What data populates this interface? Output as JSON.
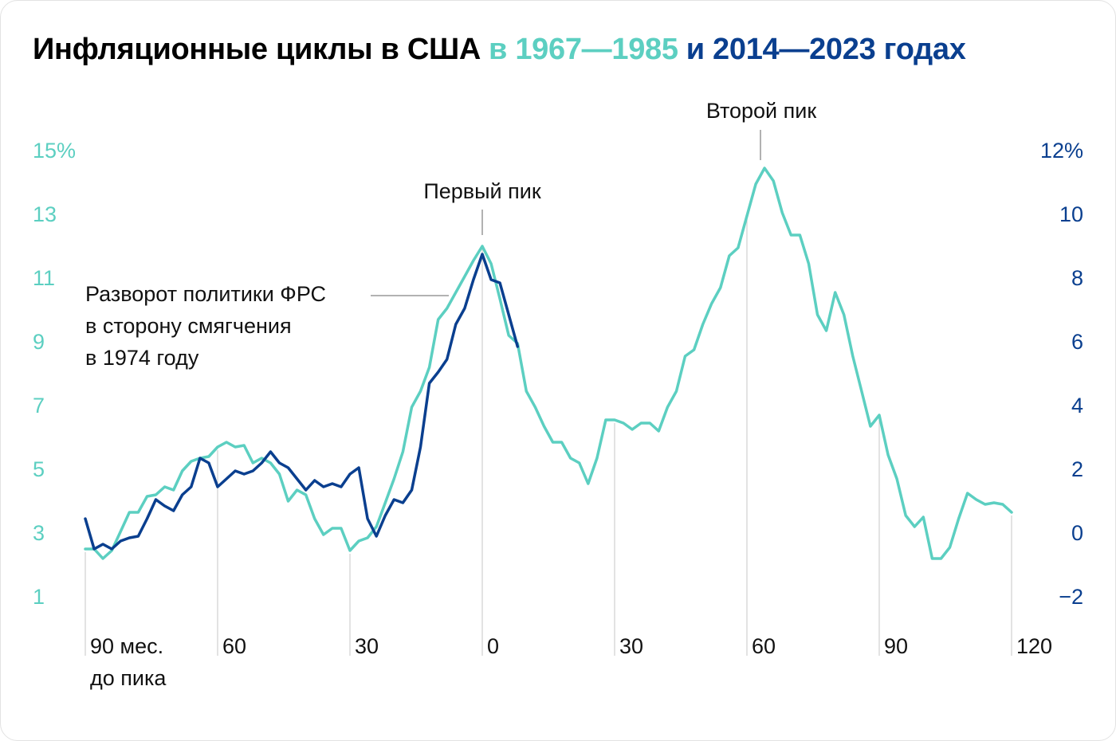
{
  "chart_data": {
    "type": "line",
    "title": [
      "Инфляционные циклы в США",
      "в 1967—1985",
      "и 2014—2023 годах"
    ],
    "x": [
      -90,
      -88,
      -86,
      -84,
      -82,
      -80,
      -78,
      -76,
      -74,
      -72,
      -70,
      -68,
      -66,
      -64,
      -62,
      -60,
      -58,
      -56,
      -54,
      -52,
      -50,
      -48,
      -46,
      -44,
      -42,
      -40,
      -38,
      -36,
      -34,
      -32,
      -30,
      -28,
      -26,
      -24,
      -22,
      -20,
      -18,
      -16,
      -14,
      -12,
      -10,
      -8,
      -6,
      -4,
      -2,
      0,
      2,
      4,
      6,
      8,
      10,
      12,
      14,
      16,
      18,
      20,
      22,
      24,
      26,
      28,
      30,
      32,
      34,
      36,
      38,
      40,
      42,
      44,
      46,
      48,
      50,
      52,
      54,
      56,
      58,
      60,
      62,
      64,
      66,
      68,
      70,
      72,
      74,
      76,
      78,
      80,
      82,
      84,
      86,
      88,
      90,
      92,
      94,
      96,
      98,
      100,
      102,
      104,
      106,
      108,
      110,
      112,
      114,
      116,
      118,
      120
    ],
    "series": [
      {
        "color": "#5ccfc1",
        "axis": "y",
        "values": [
          2.55,
          2.55,
          2.25,
          2.5,
          3.1,
          3.7,
          3.7,
          4.2,
          4.25,
          4.5,
          4.4,
          5.0,
          5.3,
          5.4,
          5.45,
          5.75,
          5.9,
          5.75,
          5.8,
          5.25,
          5.4,
          5.25,
          4.9,
          4.05,
          4.4,
          4.25,
          3.5,
          3.0,
          3.2,
          3.2,
          2.5,
          2.8,
          2.9,
          3.25,
          4.0,
          4.75,
          5.6,
          7.0,
          7.5,
          8.25,
          9.75,
          10.1,
          10.6,
          11.1,
          11.6,
          12.05,
          11.5,
          10.4,
          9.25,
          9.0,
          7.5,
          7.0,
          6.4,
          5.9,
          5.9,
          5.4,
          5.25,
          4.6,
          5.4,
          6.6,
          6.6,
          6.5,
          6.3,
          6.5,
          6.5,
          6.25,
          7.0,
          7.5,
          8.6,
          8.8,
          9.6,
          10.25,
          10.75,
          11.75,
          12.0,
          13.0,
          14.0,
          14.5,
          14.1,
          13.1,
          12.4,
          12.4,
          11.5,
          9.9,
          9.4,
          10.6,
          9.9,
          8.6,
          7.5,
          6.4,
          6.75,
          5.5,
          4.75,
          3.6,
          3.25,
          3.55,
          2.25,
          2.25,
          2.6,
          3.5,
          4.3,
          4.1,
          3.95,
          4.0,
          3.95,
          3.7
        ]
      },
      {
        "color": "#0a3f8f",
        "axis": "y2",
        "values": [
          0.5,
          -0.45,
          -0.3,
          -0.45,
          -0.2,
          -0.1,
          -0.05,
          0.5,
          1.1,
          0.9,
          0.75,
          1.25,
          1.5,
          2.4,
          2.25,
          1.5,
          1.75,
          2.0,
          1.9,
          2.0,
          2.25,
          2.6,
          2.25,
          2.1,
          1.75,
          1.4,
          1.7,
          1.5,
          1.6,
          1.5,
          1.9,
          2.1,
          0.5,
          -0.05,
          0.6,
          1.1,
          1.0,
          1.4,
          2.75,
          4.75,
          5.1,
          5.5,
          6.6,
          7.1,
          8.0,
          8.8,
          8.0,
          7.9,
          6.9,
          5.9,
          null,
          null,
          null,
          null,
          null,
          null,
          null,
          null,
          null,
          null,
          null,
          null,
          null,
          null,
          null,
          null,
          null,
          null,
          null,
          null,
          null,
          null,
          null,
          null,
          null,
          null,
          null,
          null,
          null,
          null,
          null,
          null,
          null,
          null,
          null,
          null,
          null,
          null,
          null,
          null,
          null,
          null,
          null,
          null,
          null,
          null,
          null,
          null,
          null,
          null,
          null,
          null,
          null,
          null,
          null,
          null
        ]
      }
    ],
    "xlim": [
      -90,
      120
    ],
    "xticks": [
      {
        "value": -90,
        "label": "90 мес.\nдо пика"
      },
      {
        "value": -60,
        "label": "60"
      },
      {
        "value": -30,
        "label": "30"
      },
      0,
      30,
      60,
      90,
      120
    ],
    "ylim": [
      1,
      15
    ],
    "yticks": [
      1,
      3,
      5,
      7,
      9,
      11,
      13,
      {
        "value": 15,
        "label": "15%"
      }
    ],
    "y2lim": [
      -2,
      12
    ],
    "y2ticks": [
      {
        "value": -2,
        "label": "−2"
      },
      0,
      2,
      4,
      6,
      8,
      10,
      {
        "value": 12,
        "label": "12%"
      }
    ],
    "annotations": [
      {
        "text": "Первый пик"
      },
      {
        "text": "Второй пик"
      },
      {
        "lines": [
          "Разворот политики ФРС",
          "в сторону смягчения",
          "в 1974 году"
        ]
      }
    ]
  }
}
